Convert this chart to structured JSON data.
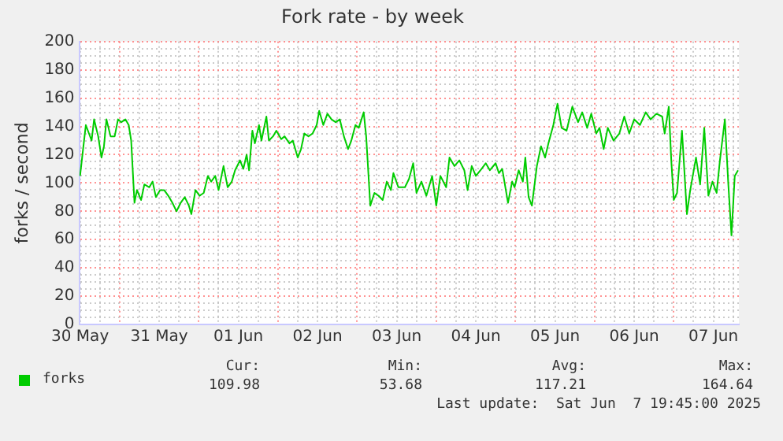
{
  "chart_data": {
    "type": "line",
    "title": "Fork rate - by week",
    "ylabel": "forks / second",
    "legend": "bottom left",
    "grid": true,
    "marker": "none",
    "line_style": "solid",
    "xlim": [
      "2025-05-30T11:45",
      "2025-06-07T19:45"
    ],
    "ylim": [
      0,
      200
    ],
    "xticks": [
      {
        "value": "2025-05-30T12:00",
        "label": "30 May"
      },
      {
        "value": "2025-05-30T18:00",
        "label": null
      },
      {
        "value": "2025-05-31T00:00",
        "label": null
      },
      {
        "value": "2025-05-31T06:00",
        "label": null
      },
      {
        "value": "2025-05-31T12:00",
        "label": "31 May"
      },
      {
        "value": "2025-05-31T18:00",
        "label": null
      },
      {
        "value": "2025-06-01T00:00",
        "label": null
      },
      {
        "value": "2025-06-01T06:00",
        "label": null
      },
      {
        "value": "2025-06-01T12:00",
        "label": "01 Jun"
      },
      {
        "value": "2025-06-01T18:00",
        "label": null
      },
      {
        "value": "2025-06-02T00:00",
        "label": null
      },
      {
        "value": "2025-06-02T06:00",
        "label": null
      },
      {
        "value": "2025-06-02T12:00",
        "label": "02 Jun"
      },
      {
        "value": "2025-06-02T18:00",
        "label": null
      },
      {
        "value": "2025-06-03T00:00",
        "label": null
      },
      {
        "value": "2025-06-03T06:00",
        "label": null
      },
      {
        "value": "2025-06-03T12:00",
        "label": "03 Jun"
      },
      {
        "value": "2025-06-03T18:00",
        "label": null
      },
      {
        "value": "2025-06-04T00:00",
        "label": null
      },
      {
        "value": "2025-06-04T06:00",
        "label": null
      },
      {
        "value": "2025-06-04T12:00",
        "label": "04 Jun"
      },
      {
        "value": "2025-06-04T18:00",
        "label": null
      },
      {
        "value": "2025-06-05T00:00",
        "label": null
      },
      {
        "value": "2025-06-05T06:00",
        "label": null
      },
      {
        "value": "2025-06-05T12:00",
        "label": "05 Jun"
      },
      {
        "value": "2025-06-05T18:00",
        "label": null
      },
      {
        "value": "2025-06-06T00:00",
        "label": null
      },
      {
        "value": "2025-06-06T06:00",
        "label": null
      },
      {
        "value": "2025-06-06T12:00",
        "label": "06 Jun"
      },
      {
        "value": "2025-06-06T18:00",
        "label": null
      },
      {
        "value": "2025-06-07T00:00",
        "label": null
      },
      {
        "value": "2025-06-07T06:00",
        "label": null
      },
      {
        "value": "2025-06-07T12:00",
        "label": "07 Jun"
      },
      {
        "value": "2025-06-07T18:00",
        "label": null
      }
    ],
    "yticks": [
      0,
      {
        "value": 5,
        "label": null
      },
      {
        "value": 10,
        "label": null
      },
      {
        "value": 15,
        "label": null
      },
      20,
      {
        "value": 25,
        "label": null
      },
      {
        "value": 30,
        "label": null
      },
      {
        "value": 35,
        "label": null
      },
      40,
      {
        "value": 45,
        "label": null
      },
      {
        "value": 50,
        "label": null
      },
      {
        "value": 55,
        "label": null
      },
      60,
      {
        "value": 65,
        "label": null
      },
      {
        "value": 70,
        "label": null
      },
      {
        "value": 75,
        "label": null
      },
      80,
      {
        "value": 85,
        "label": null
      },
      {
        "value": 90,
        "label": null
      },
      {
        "value": 95,
        "label": null
      },
      100,
      {
        "value": 105,
        "label": null
      },
      {
        "value": 110,
        "label": null
      },
      {
        "value": 115,
        "label": null
      },
      120,
      {
        "value": 125,
        "label": null
      },
      {
        "value": 130,
        "label": null
      },
      {
        "value": 135,
        "label": null
      },
      140,
      {
        "value": 145,
        "label": null
      },
      {
        "value": 150,
        "label": null
      },
      {
        "value": 155,
        "label": null
      },
      160,
      {
        "value": 165,
        "label": null
      },
      {
        "value": 170,
        "label": null
      },
      {
        "value": 175,
        "label": null
      },
      180,
      {
        "value": 185,
        "label": null
      },
      {
        "value": 190,
        "label": null
      },
      {
        "value": 195,
        "label": null
      },
      200
    ],
    "x": [
      "2025-05-30T12:00",
      "2025-05-30T13:45",
      "2025-05-30T15:30",
      "2025-05-30T16:15",
      "2025-05-30T17:30",
      "2025-05-30T18:30",
      "2025-05-30T19:15",
      "2025-05-30T20:00",
      "2025-05-30T21:15",
      "2025-05-30T22:30",
      "2025-05-30T23:30",
      "2025-05-31T00:30",
      "2025-05-31T01:45",
      "2025-05-31T02:45",
      "2025-05-31T03:30",
      "2025-05-31T04:30",
      "2025-05-31T05:15",
      "2025-05-31T06:30",
      "2025-05-31T07:30",
      "2025-05-31T09:00",
      "2025-05-31T10:00",
      "2025-05-31T11:00",
      "2025-05-31T12:15",
      "2025-05-31T13:30",
      "2025-05-31T14:45",
      "2025-05-31T16:00",
      "2025-05-31T17:15",
      "2025-05-31T18:30",
      "2025-05-31T19:45",
      "2025-05-31T21:00",
      "2025-05-31T21:45",
      "2025-05-31T23:00",
      "2025-06-01T00:15",
      "2025-06-01T01:30",
      "2025-06-01T02:45",
      "2025-06-01T03:45",
      "2025-06-01T05:00",
      "2025-06-01T06:00",
      "2025-06-01T07:30",
      "2025-06-01T08:45",
      "2025-06-01T10:00",
      "2025-06-01T11:00",
      "2025-06-01T12:30",
      "2025-06-01T13:30",
      "2025-06-01T14:30",
      "2025-06-01T15:15",
      "2025-06-01T16:15",
      "2025-06-01T17:00",
      "2025-06-01T18:15",
      "2025-06-01T19:00",
      "2025-06-01T20:30",
      "2025-06-01T21:15",
      "2025-06-01T22:30",
      "2025-06-01T23:30",
      "2025-06-02T01:00",
      "2025-06-02T02:00",
      "2025-06-02T03:30",
      "2025-06-02T04:30",
      "2025-06-02T06:00",
      "2025-06-02T07:00",
      "2025-06-02T08:00",
      "2025-06-02T09:15",
      "2025-06-02T10:30",
      "2025-06-02T11:45",
      "2025-06-02T12:30",
      "2025-06-02T13:45",
      "2025-06-02T15:00",
      "2025-06-02T16:15",
      "2025-06-02T17:30",
      "2025-06-02T18:45",
      "2025-06-02T20:00",
      "2025-06-02T21:15",
      "2025-06-02T22:15",
      "2025-06-02T23:30",
      "2025-06-03T00:30",
      "2025-06-03T02:00",
      "2025-06-03T02:45",
      "2025-06-03T04:00",
      "2025-06-03T05:15",
      "2025-06-03T06:30",
      "2025-06-03T07:45",
      "2025-06-03T09:00",
      "2025-06-03T10:15",
      "2025-06-03T11:00",
      "2025-06-03T12:30",
      "2025-06-03T14:30",
      "2025-06-03T15:45",
      "2025-06-03T17:00",
      "2025-06-03T18:00",
      "2025-06-03T19:30",
      "2025-06-03T21:00",
      "2025-06-03T22:45",
      "2025-06-04T00:00",
      "2025-06-04T01:15",
      "2025-06-04T03:00",
      "2025-06-04T04:00",
      "2025-06-04T05:30",
      "2025-06-04T07:00",
      "2025-06-04T08:30",
      "2025-06-04T09:30",
      "2025-06-04T10:45",
      "2025-06-04T12:00",
      "2025-06-04T13:45",
      "2025-06-04T15:00",
      "2025-06-04T16:15",
      "2025-06-04T18:00",
      "2025-06-04T19:00",
      "2025-06-04T20:00",
      "2025-06-04T21:45",
      "2025-06-04T23:00",
      "2025-06-04T23:45",
      "2025-06-05T01:00",
      "2025-06-05T02:15",
      "2025-06-05T03:00",
      "2025-06-05T04:00",
      "2025-06-05T05:00",
      "2025-06-05T06:30",
      "2025-06-05T07:45",
      "2025-06-05T09:00",
      "2025-06-05T10:00",
      "2025-06-05T11:30",
      "2025-06-05T12:45",
      "2025-06-05T14:00",
      "2025-06-05T15:30",
      "2025-06-05T17:15",
      "2025-06-05T19:00",
      "2025-06-05T20:15",
      "2025-06-05T21:45",
      "2025-06-05T23:00",
      "2025-06-06T00:30",
      "2025-06-06T01:30",
      "2025-06-06T02:45",
      "2025-06-06T04:00",
      "2025-06-06T05:45",
      "2025-06-06T07:30",
      "2025-06-06T09:00",
      "2025-06-06T10:30",
      "2025-06-06T12:00",
      "2025-06-06T13:45",
      "2025-06-06T15:30",
      "2025-06-06T17:00",
      "2025-06-06T18:45",
      "2025-06-06T20:30",
      "2025-06-06T21:15",
      "2025-06-06T22:30",
      "2025-06-06T23:15",
      "2025-06-07T00:00",
      "2025-06-07T01:00",
      "2025-06-07T02:30",
      "2025-06-07T04:00",
      "2025-06-07T05:00",
      "2025-06-07T06:45",
      "2025-06-07T08:00",
      "2025-06-07T09:15",
      "2025-06-07T10:30",
      "2025-06-07T11:45",
      "2025-06-07T13:00",
      "2025-06-07T14:00",
      "2025-06-07T15:30",
      "2025-06-07T16:30",
      "2025-06-07T17:30",
      "2025-06-07T18:30",
      "2025-06-07T19:30"
    ],
    "series": [
      {
        "name": "forks",
        "color": "#00cc00",
        "values": [
          105,
          141,
          130,
          145,
          133,
          118,
          126,
          145,
          133,
          133,
          145,
          143,
          145,
          141,
          130,
          86,
          95,
          88,
          99,
          97,
          101,
          90,
          95,
          95,
          91,
          86,
          80,
          86,
          90,
          84,
          78,
          95,
          91,
          93,
          105,
          101,
          105,
          95,
          112,
          97,
          101,
          109,
          116,
          110,
          120,
          109,
          137,
          128,
          141,
          130,
          147,
          130,
          133,
          137,
          131,
          133,
          128,
          130,
          118,
          124,
          135,
          133,
          135,
          141,
          151,
          141,
          149,
          145,
          143,
          145,
          133,
          124,
          130,
          141,
          139,
          150,
          133,
          84,
          93,
          91,
          88,
          101,
          95,
          107,
          97,
          97,
          103,
          114,
          93,
          101,
          91,
          105,
          84,
          105,
          97,
          118,
          112,
          116,
          109,
          95,
          112,
          105,
          110,
          114,
          109,
          114,
          107,
          110,
          86,
          101,
          97,
          109,
          101,
          118,
          90,
          84,
          112,
          126,
          118,
          128,
          141,
          156,
          139,
          137,
          154,
          143,
          150,
          139,
          149,
          135,
          139,
          124,
          139,
          130,
          135,
          147,
          135,
          145,
          141,
          150,
          145,
          149,
          147,
          135,
          154,
          116,
          88,
          93,
          137,
          78,
          95,
          118,
          99,
          139,
          91,
          101,
          93,
          116,
          145,
          101,
          63,
          105,
          109
        ]
      }
    ],
    "annotations": [
      "Cur:",
      "Min:",
      "Avg:",
      "Max:",
      "109.98",
      "53.68",
      "117.21",
      "164.64",
      "Last update:  Sat Jun  7 19:45:00 2025"
    ]
  }
}
